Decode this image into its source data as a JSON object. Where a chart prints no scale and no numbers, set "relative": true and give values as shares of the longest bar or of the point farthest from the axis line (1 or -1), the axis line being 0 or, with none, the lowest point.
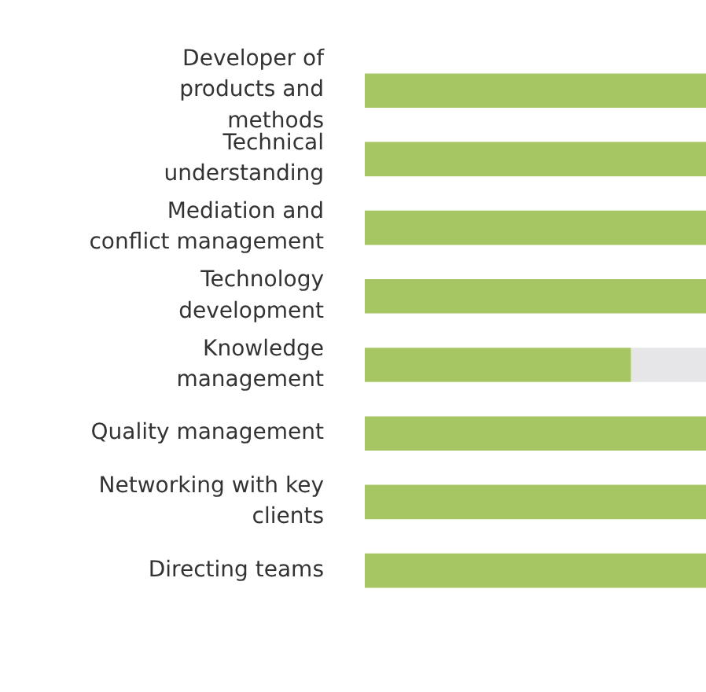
{
  "chart_data": {
    "type": "bar",
    "orientation": "horizontal",
    "relative": true,
    "stacked": true,
    "categories": [
      "Developer of products and methods",
      "Technical understanding",
      "Mediation and conflict management",
      "Technology development",
      "Knowledge management",
      "Quality management",
      "Networking with key clients",
      "Directing teams"
    ],
    "series": [
      {
        "color": "#a6c664",
        "values": [
          1,
          1,
          1,
          1,
          0.78,
          1,
          1,
          1
        ]
      },
      {
        "color": "#e6e6e8",
        "values": [
          0,
          0,
          0,
          0,
          0.22,
          0,
          0,
          0
        ]
      }
    ],
    "legend": false,
    "grid": false
  }
}
